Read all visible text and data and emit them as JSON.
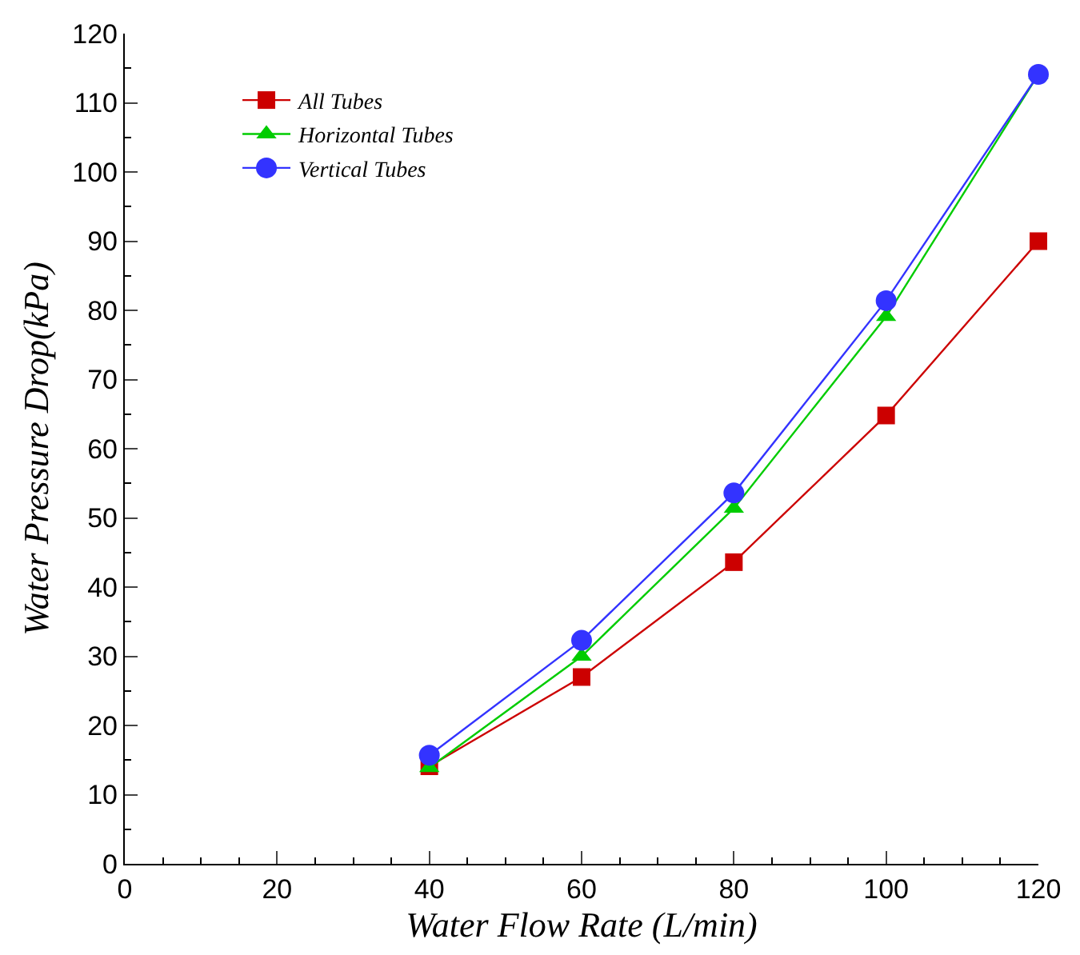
{
  "chart_data": {
    "type": "line",
    "xlabel": "Water Flow Rate (L/min)",
    "ylabel": "Water Pressure Drop(kPa)",
    "x": [
      40,
      60,
      80,
      100,
      120
    ],
    "series": [
      {
        "name": "All Tubes",
        "color": "#cc0000",
        "marker": "square",
        "values": [
          14.1,
          27.0,
          43.6,
          64.8,
          90.0
        ]
      },
      {
        "name": "Horizontal Tubes",
        "color": "#00cc00",
        "marker": "triangle",
        "values": [
          13.9,
          30.0,
          51.4,
          79.1,
          114.1
        ]
      },
      {
        "name": "Vertical Tubes",
        "color": "#3333ff",
        "marker": "circle",
        "values": [
          15.7,
          32.3,
          53.6,
          81.4,
          114.1
        ]
      }
    ],
    "xlim": [
      0,
      120
    ],
    "xticks": [
      0,
      20,
      40,
      60,
      80,
      100,
      120
    ],
    "ylim": [
      0,
      120
    ],
    "yticks": [
      0,
      10,
      20,
      30,
      40,
      50,
      60,
      70,
      80,
      90,
      100,
      110,
      120
    ],
    "legend": "top left",
    "line_style": "solid"
  }
}
